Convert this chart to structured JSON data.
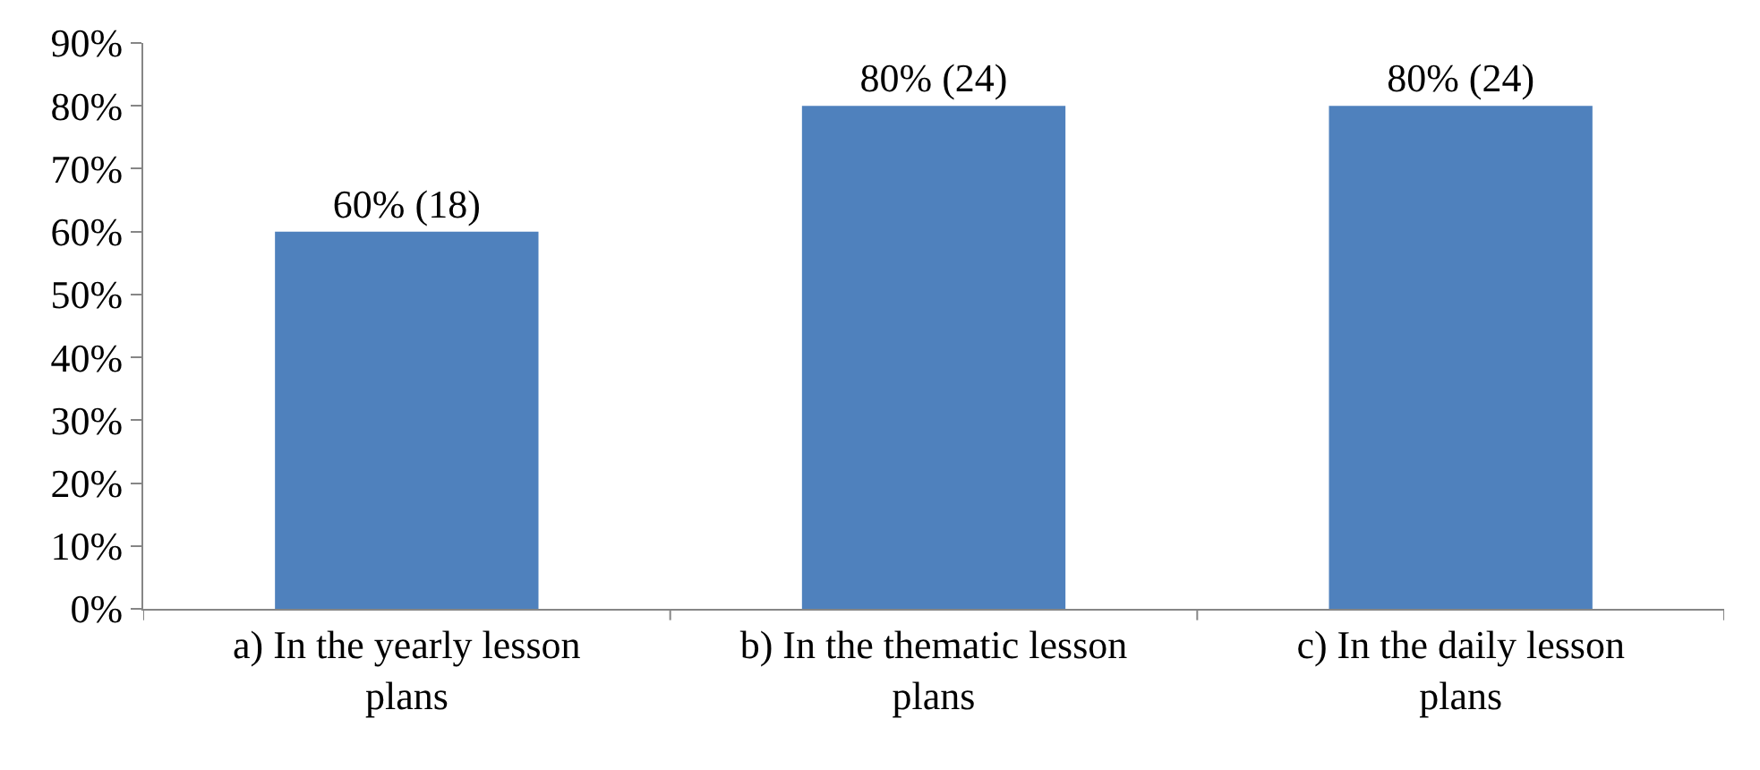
{
  "chart_data": {
    "type": "bar",
    "categories": [
      "a) In the yearly lesson plans",
      "b) In the thematic lesson plans",
      "c) In the daily lesson plans"
    ],
    "values": [
      60,
      80,
      80
    ],
    "value_labels": [
      "60% (18)",
      "80% (24)",
      "80% (24)"
    ],
    "color": "#4f81bd",
    "ylim": [
      0,
      90
    ],
    "yticks": [
      {
        "value": 0,
        "label": "0%"
      },
      {
        "value": 10,
        "label": "10%"
      },
      {
        "value": 20,
        "label": "20%"
      },
      {
        "value": 30,
        "label": "30%"
      },
      {
        "value": 40,
        "label": "40%"
      },
      {
        "value": 50,
        "label": "50%"
      },
      {
        "value": 60,
        "label": "60%"
      },
      {
        "value": 70,
        "label": "70%"
      },
      {
        "value": 80,
        "label": "80%"
      },
      {
        "value": 90,
        "label": "90%"
      }
    ],
    "legend": false
  }
}
